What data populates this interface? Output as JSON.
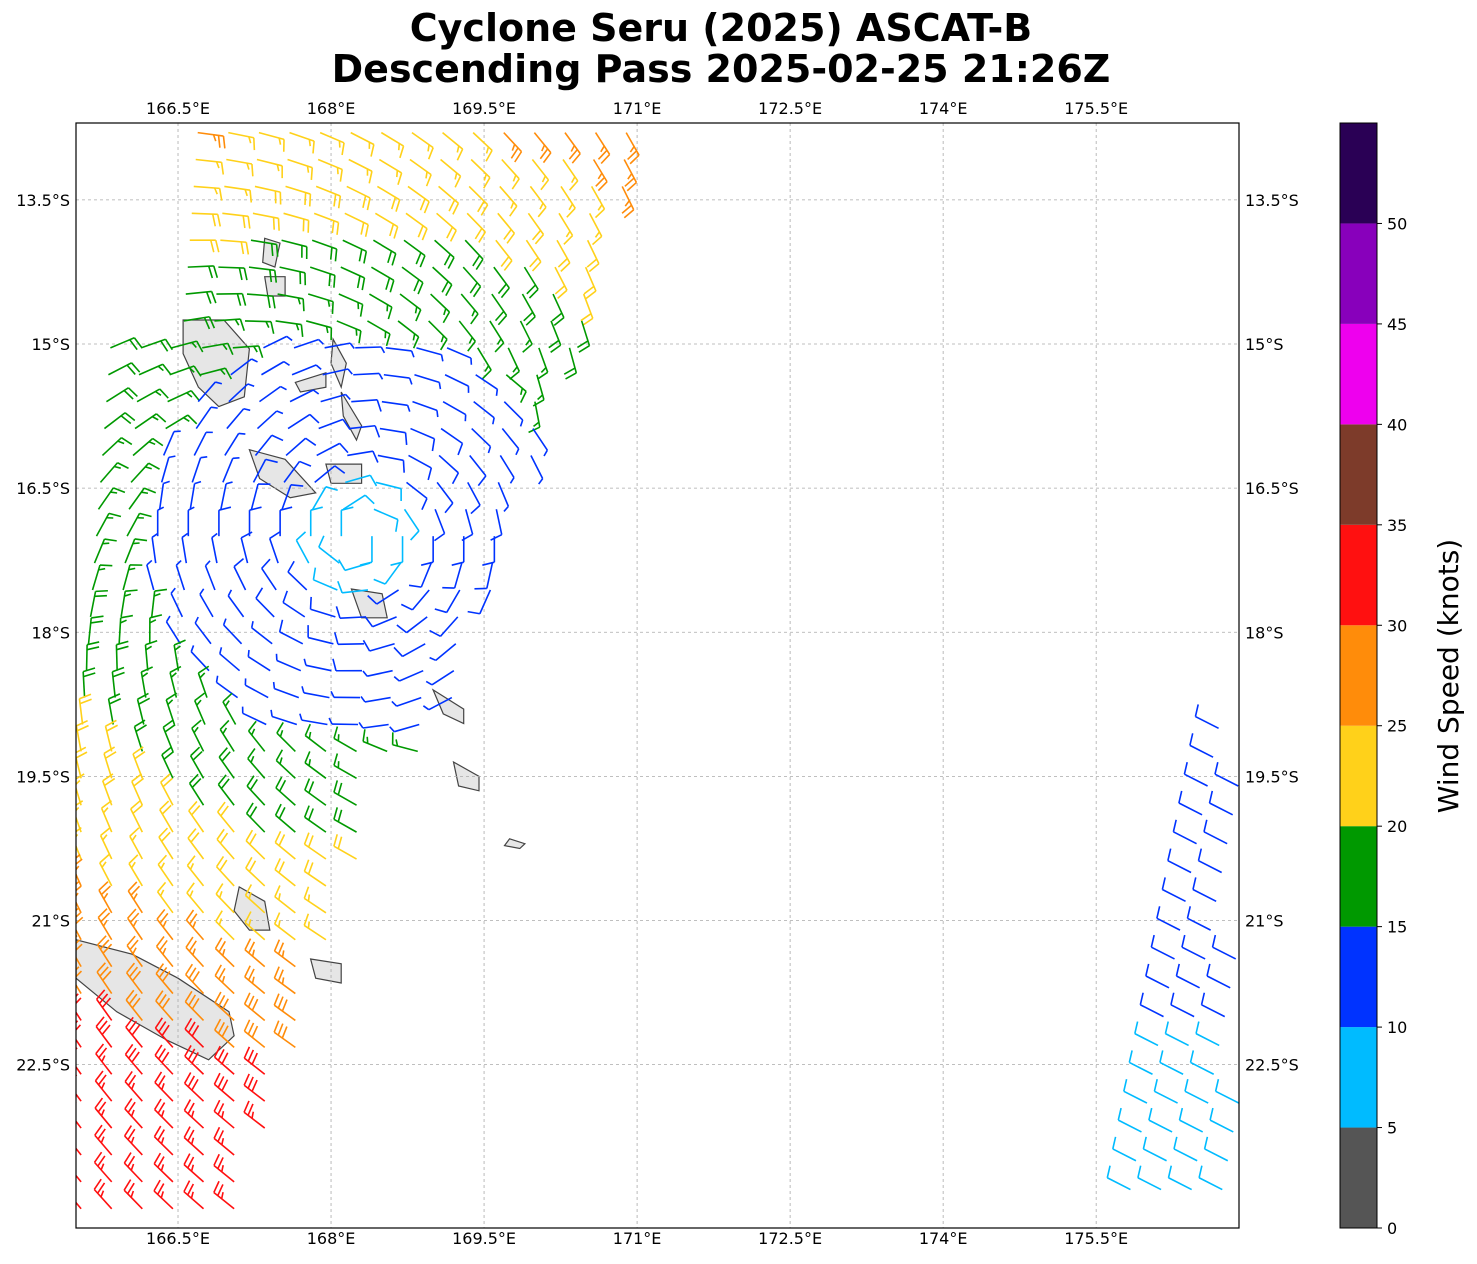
{
  "figure": {
    "title_line1": "Cyclone Seru (2025) ASCAT-B",
    "title_line2": "Descending Pass 2025-02-25 21:26Z"
  },
  "map": {
    "lon_range": [
      165.5,
      176.9
    ],
    "lat_range": [
      -24.2,
      -12.7
    ],
    "x_ticks": [
      166.5,
      168.0,
      169.5,
      171.0,
      172.5,
      174.0,
      175.5
    ],
    "x_tick_labels": [
      "166.5°E",
      "168°E",
      "169.5°E",
      "171°E",
      "172.5°E",
      "174°E",
      "175.5°E"
    ],
    "y_ticks": [
      -13.5,
      -15.0,
      -16.5,
      -18.0,
      -19.5,
      -21.0,
      -22.5
    ],
    "y_tick_labels": [
      "13.5°S",
      "15°S",
      "16.5°S",
      "18°S",
      "19.5°S",
      "21°S",
      "22.5°S"
    ],
    "gridlines": true,
    "gridline_color": "#aaaaaa",
    "land_color": "#e6e6e6",
    "coastline_color": "#444444",
    "wind_barbs": "ASCAT-B scatterometer wind barbs colored by wind speed"
  },
  "colorbar": {
    "label": "Wind Speed (knots)",
    "ticks": [
      "0",
      "5",
      "10",
      "15",
      "20",
      "25",
      "30",
      "35",
      "40",
      "45",
      "50"
    ],
    "bins": [
      {
        "min": 0,
        "max": 5,
        "color": "#555555"
      },
      {
        "min": 5,
        "max": 10,
        "color": "#00bbff"
      },
      {
        "min": 10,
        "max": 15,
        "color": "#0033ff"
      },
      {
        "min": 15,
        "max": 20,
        "color": "#009900"
      },
      {
        "min": 20,
        "max": 25,
        "color": "#ffd11a"
      },
      {
        "min": 25,
        "max": 30,
        "color": "#ff8c0a"
      },
      {
        "min": 30,
        "max": 35,
        "color": "#ff1010"
      },
      {
        "min": 35,
        "max": 40,
        "color": "#7d3b2a"
      },
      {
        "min": 40,
        "max": 45,
        "color": "#ee00ee"
      },
      {
        "min": 45,
        "max": 50,
        "color": "#8800bb"
      },
      {
        "min": 50,
        "max": 55,
        "color": "#2a0055"
      }
    ]
  }
}
